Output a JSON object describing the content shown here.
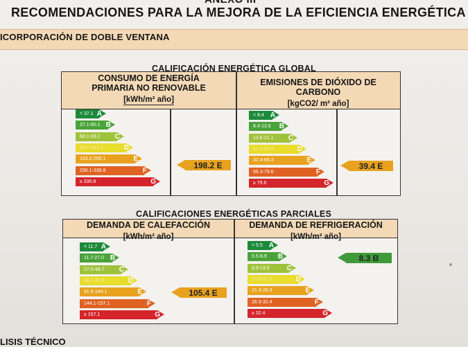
{
  "header": {
    "annex": "ANEXO III",
    "title": "RECOMENDACIONES PARA LA MEJORA DE LA EFICIENCIA ENERGÉTICA"
  },
  "section": "ICORPORACIÓN DE DOBLE VENTANA",
  "global": {
    "title": "CALIFICACIÓN ENERGÉTICA GLOBAL",
    "consumo": {
      "title1": "CONSUMO DE ENERGÍA",
      "title2": "PRIMARIA NO RENOVABLE",
      "unit": "[kWh/m² año]",
      "scale": [
        {
          "range": "< 37.1",
          "letter": "A",
          "color": "#1d8a3b"
        },
        {
          "range": "37.1-60.1",
          "letter": "B",
          "color": "#49a33a"
        },
        {
          "range": "60.1-93.2",
          "letter": "C",
          "color": "#9fc23b"
        },
        {
          "range": "93.2-143.2",
          "letter": "D",
          "color": "#e8dc2c"
        },
        {
          "range": "143.2-296.1",
          "letter": "E",
          "color": "#e8a21f"
        },
        {
          "range": "296.1-336.8",
          "letter": "F",
          "color": "#df6223"
        },
        {
          "range": "≥ 336.8",
          "letter": "G",
          "color": "#d3252b"
        }
      ],
      "value": "198.2 E",
      "value_color": "#e8a21f",
      "value_letter_index": 4
    },
    "emisiones": {
      "title1": "EMISIONES DE DIÓXIDO DE",
      "title2": "CARBONO",
      "unit": "[kgCO2/ m² año]",
      "scale": [
        {
          "range": "< 8.4",
          "letter": "A",
          "color": "#1d8a3b"
        },
        {
          "range": "8.4-13.6",
          "letter": "B",
          "color": "#49a33a"
        },
        {
          "range": "13.6-21.1",
          "letter": "C",
          "color": "#9fc23b"
        },
        {
          "range": "21.1-32.4",
          "letter": "D",
          "color": "#e8dc2c"
        },
        {
          "range": "32.4-66.3",
          "letter": "E",
          "color": "#e8a21f"
        },
        {
          "range": "66.3-79.6",
          "letter": "F",
          "color": "#df6223"
        },
        {
          "range": "≥ 79.6",
          "letter": "G",
          "color": "#d3252b"
        }
      ],
      "value": "39.4 E",
      "value_color": "#e8a21f",
      "value_letter_index": 4
    }
  },
  "parcial": {
    "title": "CALIFICACIONES ENERGÉTICAS PARCIALES",
    "calefaccion": {
      "title1": "DEMANDA DE CALEFACCIÓN",
      "unit": "[kWh/m² año]",
      "scale": [
        {
          "range": "< 11.7",
          "letter": "A",
          "color": "#1d8a3b"
        },
        {
          "range": "11.7-27.0",
          "letter": "B",
          "color": "#49a33a"
        },
        {
          "range": "27.0-48.7",
          "letter": "C",
          "color": "#9fc23b"
        },
        {
          "range": "48.7-81.6",
          "letter": "D",
          "color": "#e8dc2c"
        },
        {
          "range": "81.6-144.1",
          "letter": "E",
          "color": "#e8a21f"
        },
        {
          "range": "144.1-157.1",
          "letter": "F",
          "color": "#df6223"
        },
        {
          "range": "≥ 157.1",
          "letter": "G",
          "color": "#d3252b"
        }
      ],
      "value": "105.4 E",
      "value_color": "#e8a21f",
      "value_letter_index": 4
    },
    "refrigeracion": {
      "title1": "DEMANDA DE REFRIGERACIÓN",
      "unit": "[kWh/m² año]",
      "scale": [
        {
          "range": "< 5.5",
          "letter": "A",
          "color": "#1d8a3b"
        },
        {
          "range": "5.5-8.9",
          "letter": "B",
          "color": "#49a33a"
        },
        {
          "range": "8.9-13.9",
          "letter": "C",
          "color": "#9fc23b"
        },
        {
          "range": "13.9-21.3",
          "letter": "D",
          "color": "#e8dc2c"
        },
        {
          "range": "21.3-26.3",
          "letter": "E",
          "color": "#e8a21f"
        },
        {
          "range": "26.3-32.4",
          "letter": "F",
          "color": "#df6223"
        },
        {
          "range": "≥ 32.4",
          "letter": "G",
          "color": "#d3252b"
        }
      ],
      "value": "8.3 B",
      "value_color": "#3f9a3a",
      "value_letter_index": 1
    }
  },
  "footer": "LISIS TÉCNICO"
}
